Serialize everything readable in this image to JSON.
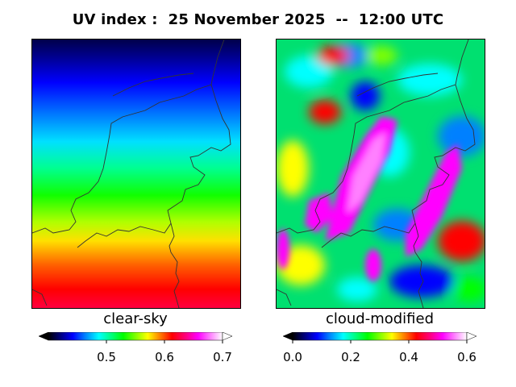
{
  "title": "UV index :  25 November 2025  --  12:00 UTC",
  "panels": [
    {
      "label": "clear-sky",
      "colorbar": {
        "min": 0.4,
        "max": 0.7,
        "ticks": [
          "0.5",
          "0.6",
          "0.7"
        ],
        "tick_values": [
          0.5,
          0.6,
          0.7
        ],
        "extend": "both"
      }
    },
    {
      "label": "cloud-modified",
      "colorbar": {
        "min": 0.0,
        "max": 0.6,
        "ticks": [
          "0.0",
          "0.2",
          "0.4",
          "0.6"
        ],
        "tick_values": [
          0.0,
          0.2,
          0.4,
          0.6
        ],
        "extend": "both"
      }
    }
  ],
  "colors": {
    "ramp": [
      "#000000",
      "#00007f",
      "#0000ff",
      "#0080ff",
      "#00ffff",
      "#00ff80",
      "#00ff00",
      "#80ff00",
      "#ffff00",
      "#ff8000",
      "#ff0000",
      "#ff0080",
      "#ff00ff",
      "#ff80ff",
      "#ffffff"
    ],
    "border": "#333333"
  },
  "region": "Netherlands"
}
